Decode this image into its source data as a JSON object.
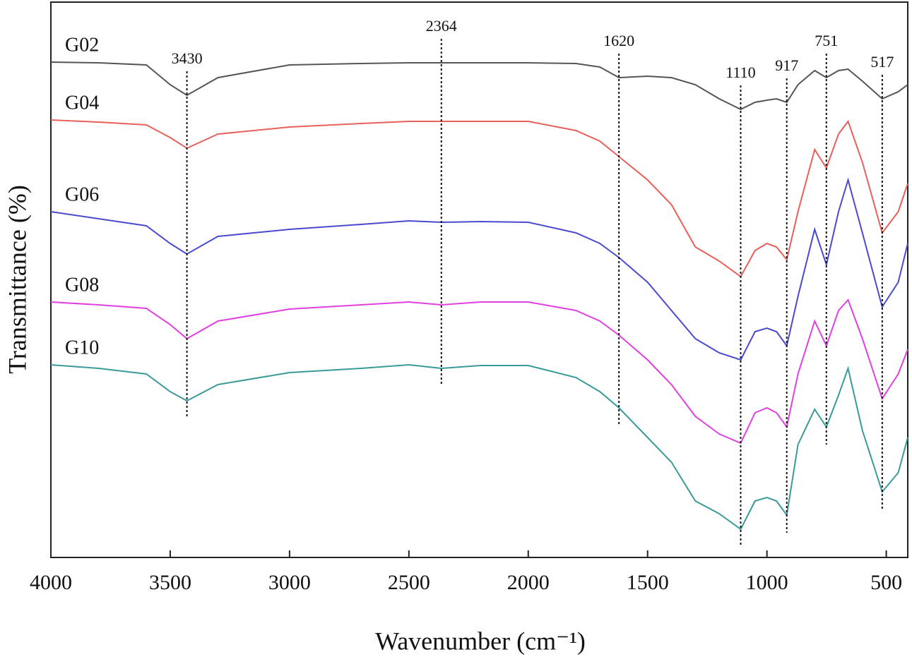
{
  "chart_data": {
    "type": "line",
    "xlabel": "Wavenumber (cm⁻¹)",
    "ylabel": "Transmittance (%)",
    "x": [
      4000,
      3800,
      3600,
      3500,
      3430,
      3300,
      3000,
      2700,
      2500,
      2364,
      2200,
      2000,
      1800,
      1700,
      1620,
      1500,
      1400,
      1300,
      1200,
      1110,
      1050,
      1000,
      960,
      917,
      870,
      800,
      751,
      700,
      660,
      600,
      517,
      450,
      410
    ],
    "xlim": [
      4000,
      410
    ],
    "xticks": [
      4000,
      3500,
      3000,
      2500,
      2000,
      1500,
      1000,
      500
    ],
    "ylim": [
      0,
      79
    ],
    "peaks": [
      3430,
      2364,
      1620,
      1110,
      917,
      751,
      517
    ],
    "series": [
      {
        "name": "G02",
        "color": "#555555",
        "values": [
          70.2,
          70.1,
          69.8,
          67,
          65.5,
          68,
          69.8,
          70,
          70.1,
          70.1,
          70.1,
          70.1,
          70,
          69.5,
          68,
          68.2,
          68,
          67,
          65,
          63.5,
          64.5,
          64.8,
          65,
          64.5,
          67,
          69,
          68,
          69,
          69.2,
          67.5,
          65,
          66,
          67
        ]
      },
      {
        "name": "G04",
        "color": "#e8605a",
        "values": [
          62,
          61.7,
          61.3,
          59.5,
          58,
          60,
          61,
          61.5,
          61.8,
          61.8,
          61.8,
          61.8,
          60.5,
          59,
          56.8,
          53.5,
          50,
          44,
          42,
          39.8,
          43.5,
          44.5,
          44,
          42.2,
          49,
          57.8,
          55.2,
          60,
          61.8,
          56,
          46,
          49,
          53
        ]
      },
      {
        "name": "G06",
        "color": "#4a4ad0",
        "values": [
          49,
          48,
          47,
          44.5,
          43,
          45.5,
          46.5,
          47.2,
          47.7,
          47.5,
          47.6,
          47.5,
          46,
          44.5,
          42.5,
          39,
          35,
          31,
          29,
          28,
          32,
          32.5,
          32,
          30,
          37,
          46.5,
          41.5,
          49,
          53.5,
          46,
          35.5,
          39,
          44.5
        ]
      },
      {
        "name": "G08",
        "color": "#e040e0",
        "values": [
          36.2,
          35.8,
          35.3,
          33,
          31,
          33.5,
          35.2,
          35.8,
          36.2,
          35.8,
          36.2,
          36.2,
          35,
          33.5,
          31.5,
          28,
          24.5,
          20,
          17.5,
          16.2,
          20.5,
          21.2,
          20.5,
          18.5,
          26,
          33.5,
          30,
          35,
          36.5,
          31,
          22.5,
          26,
          29.5
        ]
      },
      {
        "name": "G10",
        "color": "#3a9a9a",
        "values": [
          27.3,
          26.8,
          26,
          23.5,
          22.2,
          24.5,
          26.2,
          26.8,
          27.3,
          26.8,
          27.2,
          27.2,
          25.5,
          23.5,
          21.2,
          17,
          13.5,
          8,
          6.2,
          4,
          8,
          8.5,
          8,
          6,
          16,
          21,
          18.5,
          23,
          26.8,
          18,
          9.3,
          12,
          17
        ]
      }
    ]
  }
}
